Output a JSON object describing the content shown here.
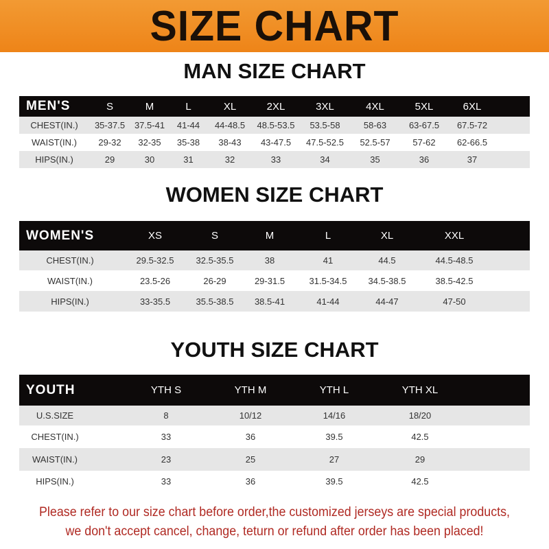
{
  "banner": {
    "title": "SIZE CHART",
    "color": "#ee8418"
  },
  "men": {
    "title": "MAN SIZE CHART",
    "header": [
      "MEN'S",
      "S",
      "M",
      "L",
      "XL",
      "2XL",
      "3XL",
      "4XL",
      "5XL",
      "6XL"
    ],
    "rows": [
      [
        "CHEST(IN.)",
        "35-37.5",
        "37.5-41",
        "41-44",
        "44-48.5",
        "48.5-53.5",
        "53.5-58",
        "58-63",
        "63-67.5",
        "67.5-72"
      ],
      [
        "WAIST(IN.)",
        "29-32",
        "32-35",
        "35-38",
        "38-43",
        "43-47.5",
        "47.5-52.5",
        "52.5-57",
        "57-62",
        "62-66.5"
      ],
      [
        "HIPS(IN.)",
        "29",
        "30",
        "31",
        "32",
        "33",
        "34",
        "35",
        "36",
        "37"
      ]
    ]
  },
  "women": {
    "title": "WOMEN SIZE CHART",
    "header": [
      "WOMEN'S",
      "XS",
      "S",
      "M",
      "L",
      "XL",
      "XXL"
    ],
    "rows": [
      [
        "CHEST(IN.)",
        "29.5-32.5",
        "32.5-35.5",
        "38",
        "41",
        "44.5",
        "44.5-48.5"
      ],
      [
        "WAIST(IN.)",
        "23.5-26",
        "26-29",
        "29-31.5",
        "31.5-34.5",
        "34.5-38.5",
        "38.5-42.5"
      ],
      [
        "HIPS(IN.)",
        "33-35.5",
        "35.5-38.5",
        "38.5-41",
        "41-44",
        "44-47",
        "47-50"
      ]
    ]
  },
  "youth": {
    "title": "YOUTH SIZE CHART",
    "header": [
      "YOUTH",
      "YTH S",
      "YTH M",
      "YTH L",
      "YTH XL"
    ],
    "rows": [
      [
        "U.S.SIZE",
        "8",
        "10/12",
        "14/16",
        "18/20"
      ],
      [
        "CHEST(IN.)",
        "33",
        "36",
        "39.5",
        "42.5"
      ],
      [
        "WAIST(IN.)",
        "23",
        "25",
        "27",
        "29"
      ],
      [
        "HIPS(IN.)",
        "33",
        "36",
        "39.5",
        "42.5"
      ]
    ]
  },
  "footer": {
    "line1": "Please refer to our size chart before order,the customized jerseys are special products,",
    "line2": "we don't accept cancel, change, teturn or refund after order has been placed!",
    "color": "#b02a23"
  }
}
